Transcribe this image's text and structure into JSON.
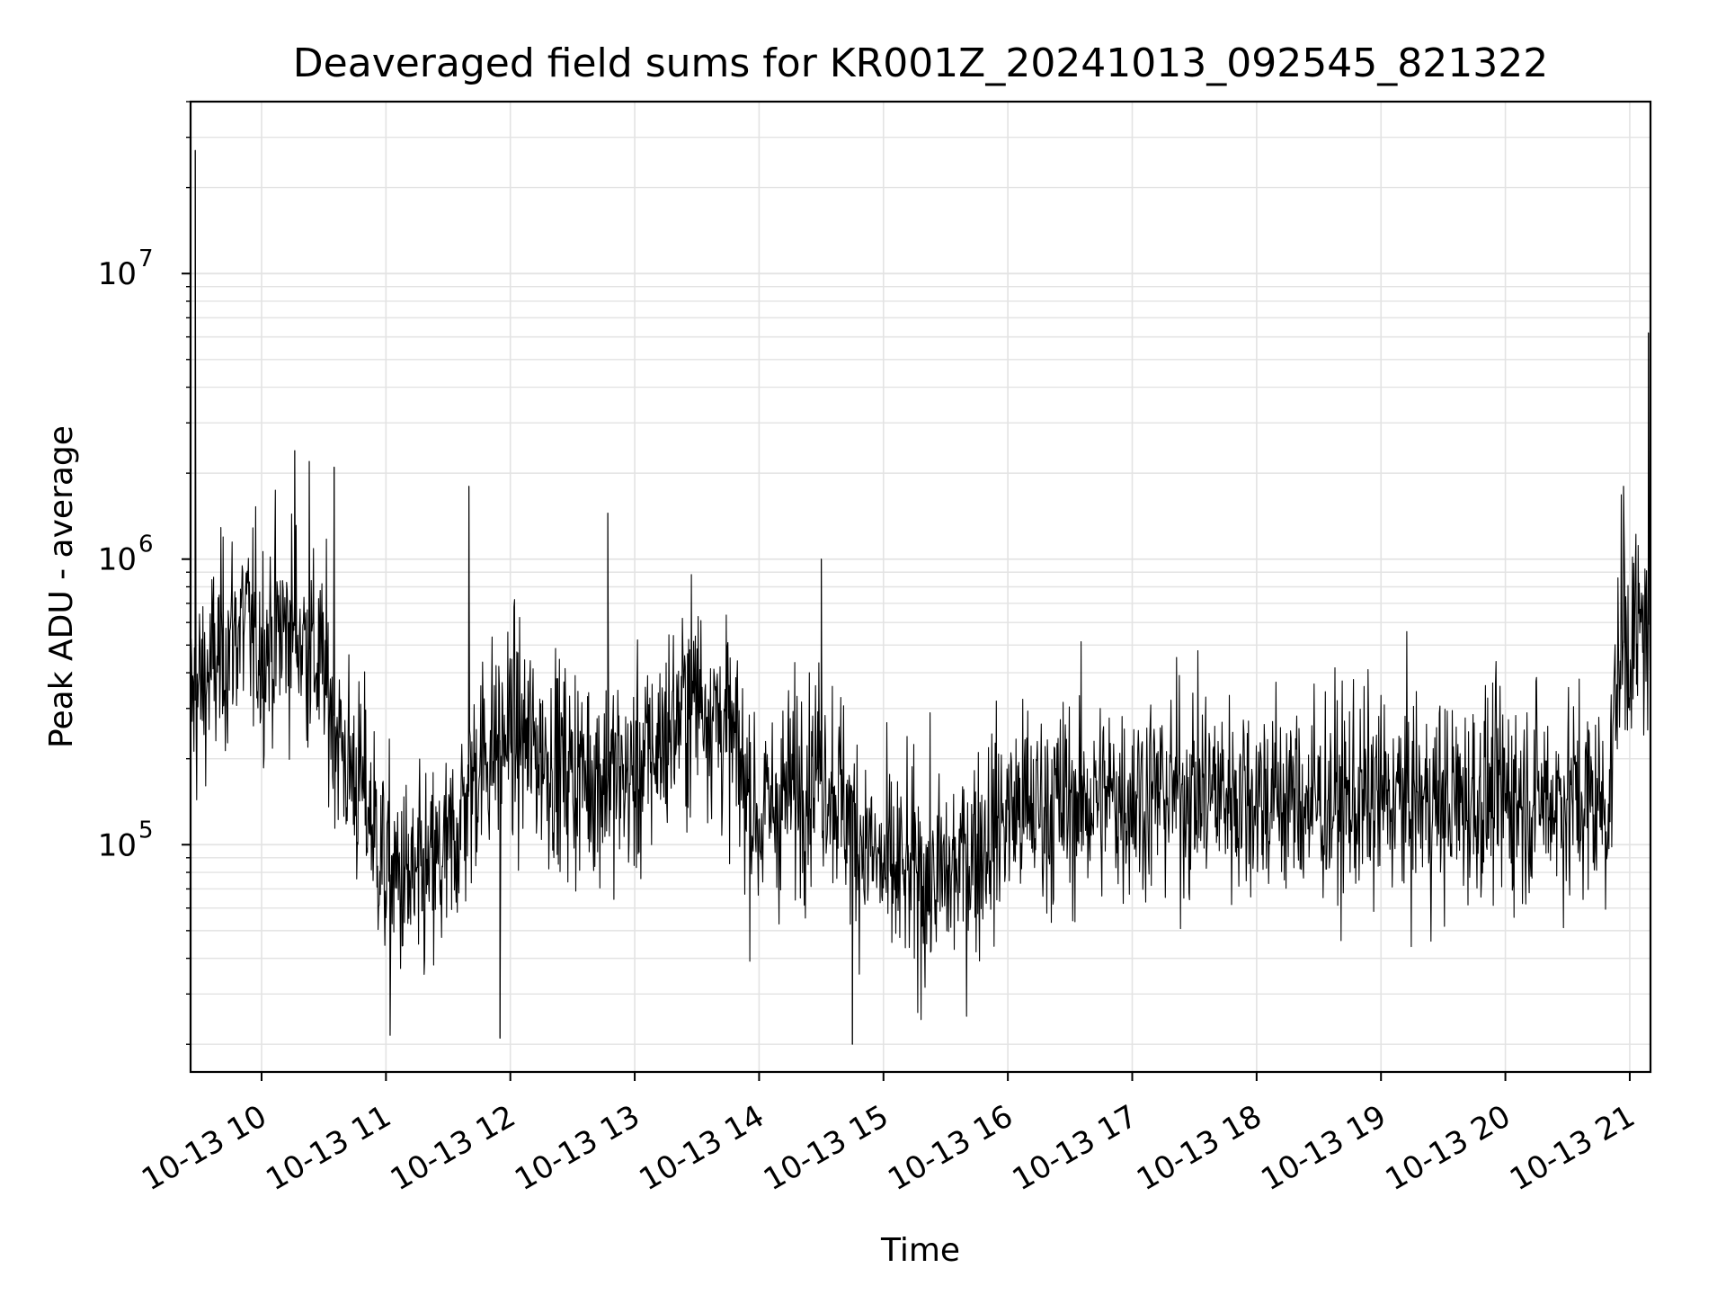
{
  "chart_data": {
    "type": "line",
    "title": "Deaveraged field sums for KR001Z_20241013_092545_821322",
    "xlabel": "Time",
    "ylabel": "Peak ADU - average",
    "yscale": "log",
    "ylim": [
      16000,
      40000000
    ],
    "xlim": [
      "2024-10-13 09:25:45",
      "2024-10-13 21:10:00"
    ],
    "grid": true,
    "line_color": "#000000",
    "x_ticks": [
      "10-13 10",
      "10-13 11",
      "10-13 12",
      "10-13 13",
      "10-13 14",
      "10-13 15",
      "10-13 16",
      "10-13 17",
      "10-13 18",
      "10-13 19",
      "10-13 20",
      "10-13 21"
    ],
    "y_ticks": [
      {
        "base": "10",
        "exp": "5",
        "value": 100000
      },
      {
        "base": "10",
        "exp": "6",
        "value": 1000000
      },
      {
        "base": "10",
        "exp": "7",
        "value": 10000000
      }
    ],
    "series": [
      {
        "x": [
          "2024-10-13 09:26",
          "2024-10-13 09:35",
          "2024-10-13 09:50",
          "2024-10-13 10:00",
          "2024-10-13 10:15",
          "2024-10-13 10:30",
          "2024-10-13 10:40",
          "2024-10-13 10:50",
          "2024-10-13 11:00",
          "2024-10-13 11:15",
          "2024-10-13 11:30",
          "2024-10-13 11:45",
          "2024-10-13 12:00",
          "2024-10-13 12:30",
          "2024-10-13 13:00",
          "2024-10-13 13:30",
          "2024-10-13 13:45",
          "2024-10-13 14:00",
          "2024-10-13 14:30",
          "2024-10-13 14:45",
          "2024-10-13 15:00",
          "2024-10-13 15:30",
          "2024-10-13 16:00",
          "2024-10-13 16:30",
          "2024-10-13 17:00",
          "2024-10-13 17:30",
          "2024-10-13 18:00",
          "2024-10-13 18:30",
          "2024-10-13 19:00",
          "2024-10-13 19:30",
          "2024-10-13 20:00",
          "2024-10-13 20:30",
          "2024-10-13 20:50",
          "2024-10-13 20:55",
          "2024-10-13 21:05",
          "2024-10-13 21:10"
        ],
        "y": [
          300000,
          400000,
          600000,
          500000,
          600000,
          400000,
          200000,
          150000,
          80000,
          70000,
          90000,
          200000,
          250000,
          180000,
          170000,
          350000,
          250000,
          120000,
          200000,
          120000,
          80000,
          75000,
          130000,
          140000,
          150000,
          155000,
          150000,
          140000,
          145000,
          140000,
          150000,
          145000,
          140000,
          500000,
          550000,
          600000
        ],
        "spikes": [
          {
            "x": "2024-10-13 09:28",
            "y": 27000000
          },
          {
            "x": "2024-10-13 10:16",
            "y": 2400000
          },
          {
            "x": "2024-10-13 10:23",
            "y": 2200000
          },
          {
            "x": "2024-10-13 10:35",
            "y": 2100000
          },
          {
            "x": "2024-10-13 11:40",
            "y": 1800000
          },
          {
            "x": "2024-10-13 12:47",
            "y": 1450000
          },
          {
            "x": "2024-10-13 14:30",
            "y": 1000000
          },
          {
            "x": "2024-10-13 20:57",
            "y": 1800000
          },
          {
            "x": "2024-10-13 21:09",
            "y": 6200000
          },
          {
            "x": "2024-10-13 14:45",
            "y": 20000
          },
          {
            "x": "2024-10-13 11:55",
            "y": 21000
          },
          {
            "x": "2024-10-13 11:02",
            "y": 21500
          }
        ]
      }
    ]
  }
}
